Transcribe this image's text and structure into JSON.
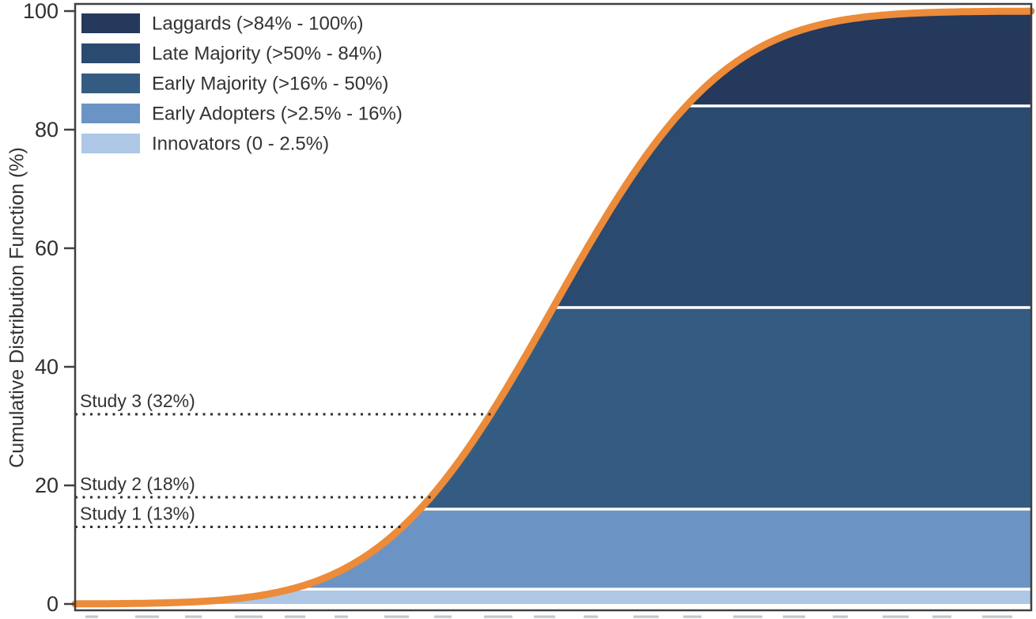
{
  "figure": {
    "background": "#ffffff",
    "frame_color": "#404040",
    "text_color": "#333333",
    "tick_label_color": "#2f2f2f"
  },
  "chart_data": {
    "type": "area",
    "title": "",
    "xlabel": "",
    "ylabel": "Cumulative Distribution Function (%)",
    "x_axis": {
      "range": [
        0,
        100
      ],
      "tick_labels_visible": false,
      "cropped_tick_marks": true
    },
    "y_axis": {
      "range": [
        0,
        100
      ],
      "ticks": [
        0,
        20,
        40,
        60,
        80,
        100
      ]
    },
    "grid": false,
    "legend_position": "top-left",
    "curve": {
      "name": "cumulative-adoption-s-curve",
      "model": "normal_cdf",
      "mean": 50,
      "sd": 14.0,
      "color": "#EC8B3A",
      "stroke_width": 9
    },
    "separator_color": "#ffffff",
    "bands": [
      {
        "label": "Innovators (0 - 2.5%)",
        "lo": 0,
        "hi": 2.5,
        "color": "#ADC7E5"
      },
      {
        "label": "Early Adopters (>2.5% - 16%)",
        "lo": 2.5,
        "hi": 16,
        "color": "#6B94C4"
      },
      {
        "label": "Early Majority (>16% - 50%)",
        "lo": 16,
        "hi": 50,
        "color": "#345C82"
      },
      {
        "label": "Late Majority (>50% - 84%)",
        "lo": 50,
        "hi": 84,
        "color": "#2A4A70"
      },
      {
        "label": "Laggards (>84% - 100%)",
        "lo": 84,
        "hi": 100,
        "color": "#24395B"
      }
    ],
    "studies": [
      {
        "label": "Study 3 (32%)",
        "value": 32
      },
      {
        "label": "Study 2 (18%)",
        "value": 18
      },
      {
        "label": "Study 1 (13%)",
        "value": 13
      }
    ],
    "study_line_color": "#2e2e2e"
  }
}
